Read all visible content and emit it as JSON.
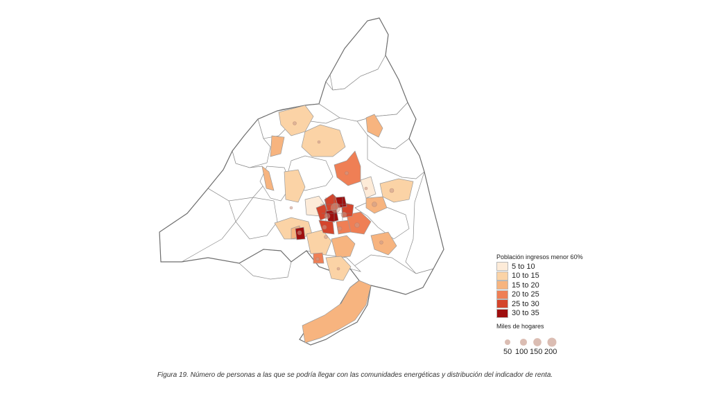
{
  "legend": {
    "title": "Población ingresos menor 60%",
    "classes": [
      {
        "label": "5 to 10",
        "color": "#fdebd8"
      },
      {
        "label": "10 to 15",
        "color": "#fbd3a6"
      },
      {
        "label": "15 to 20",
        "color": "#f7b47f"
      },
      {
        "label": "20 to 25",
        "color": "#ef7f55"
      },
      {
        "label": "25 to 30",
        "color": "#d4452c"
      },
      {
        "label": "30 to 35",
        "color": "#9e0e0e"
      }
    ]
  },
  "bubble_legend": {
    "title": "Miles de hogares",
    "values": [
      50,
      100,
      150,
      200
    ],
    "labels": [
      "50",
      "100",
      "150",
      "200"
    ],
    "color": "#c89a8a"
  },
  "caption": "Figura 19. Número de personas a las que se podría llegar con las comunidades energéticas y distribución del indicador de renta."
}
